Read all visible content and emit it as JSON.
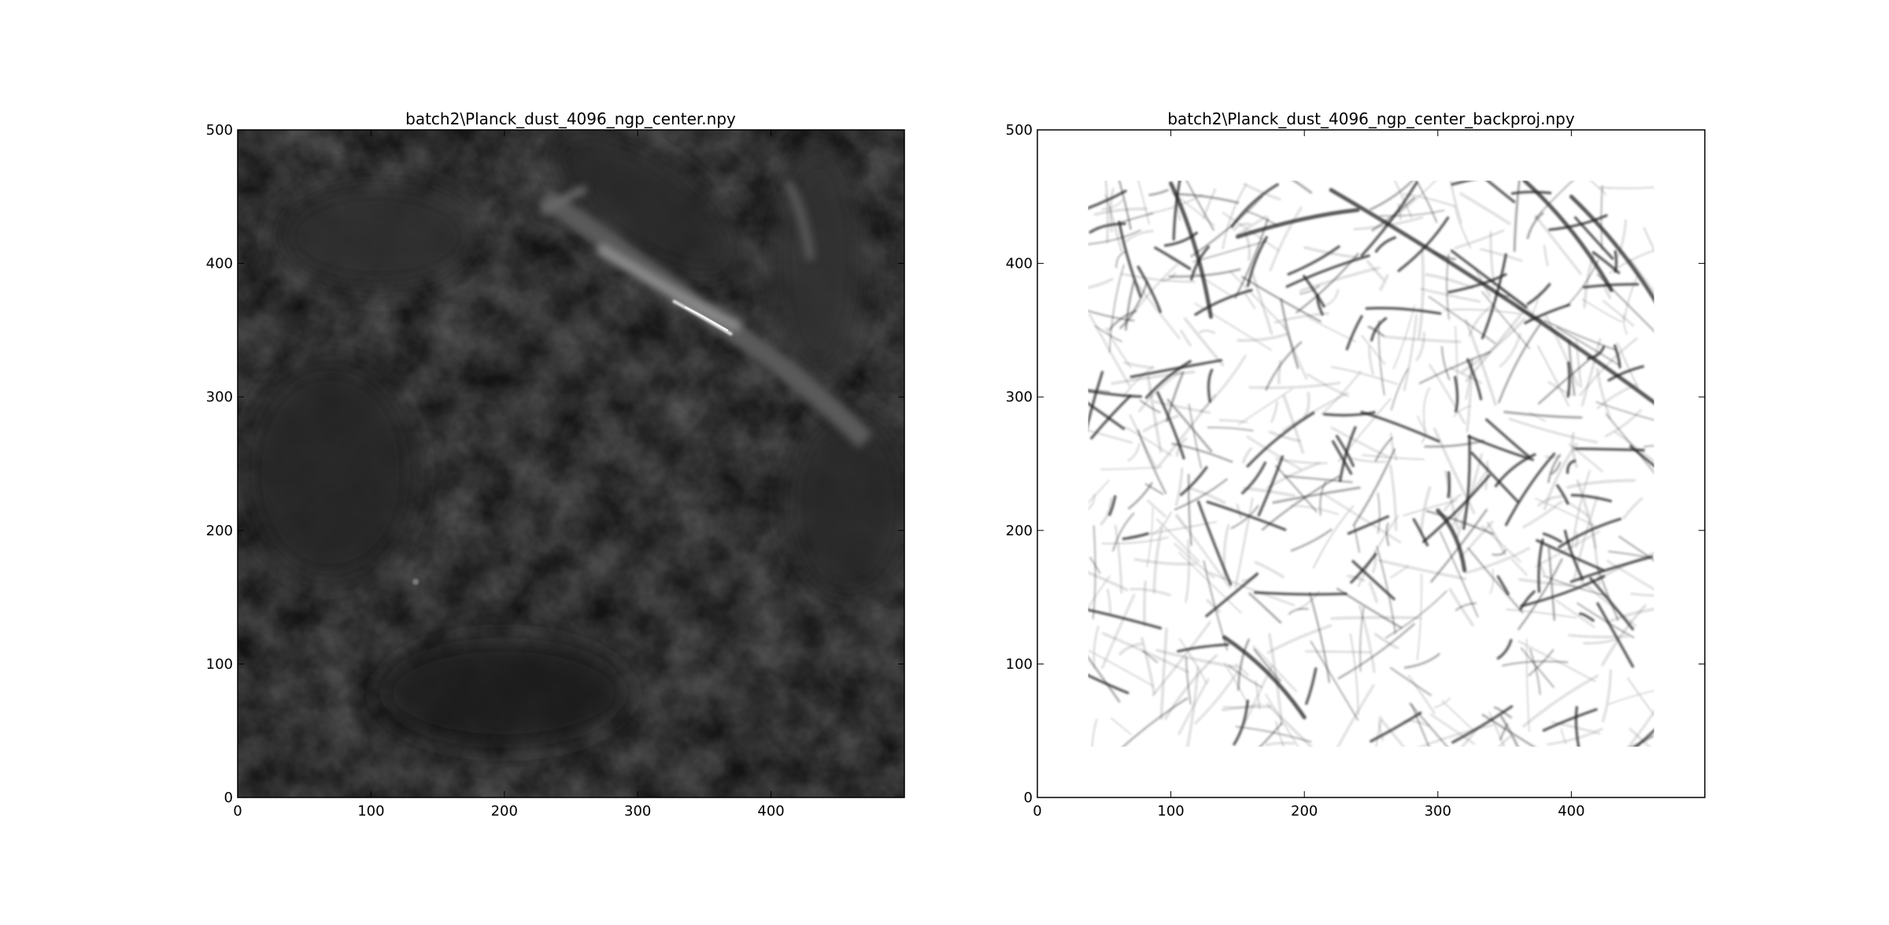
{
  "chart_data": [
    {
      "type": "heatmap",
      "title": "batch2\\Planck_dust_4096_ngp_center.npy",
      "colormap": "gray",
      "xlim": [
        0,
        500
      ],
      "ylim": [
        0,
        500
      ],
      "xticks": [
        0,
        100,
        200,
        300,
        400
      ],
      "yticks": [
        0,
        100,
        200,
        300,
        400,
        500
      ],
      "xtick_labels": [
        "0",
        "100",
        "200",
        "300",
        "400"
      ],
      "ytick_labels": [
        "0",
        "100",
        "200",
        "300",
        "400",
        "500"
      ],
      "grid": false
    },
    {
      "type": "heatmap",
      "title": "batch2\\Planck_dust_4096_ngp_center_backproj.npy",
      "colormap": "gray_r",
      "xlim": [
        0,
        500
      ],
      "ylim": [
        0,
        500
      ],
      "data_extent": {
        "x": [
          38,
          462
        ],
        "y": [
          38,
          462
        ]
      },
      "xticks": [
        0,
        100,
        200,
        300,
        400
      ],
      "yticks": [
        0,
        100,
        200,
        300,
        400,
        500
      ],
      "xtick_labels": [
        "0",
        "100",
        "200",
        "300",
        "400"
      ],
      "ytick_labels": [
        "0",
        "100",
        "200",
        "300",
        "400",
        "500"
      ],
      "grid": false
    }
  ]
}
